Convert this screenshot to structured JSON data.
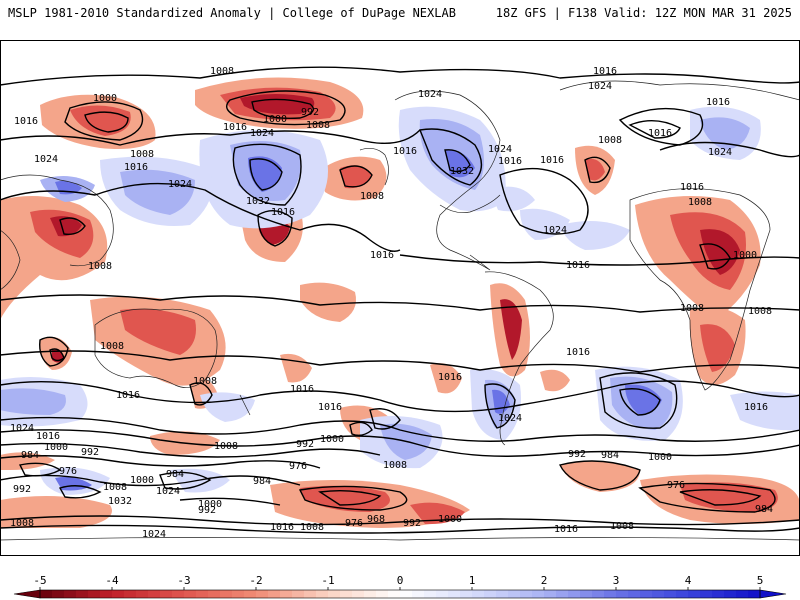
{
  "header": {
    "title_left": "MSLP 1981-2010 Standardized Anomaly | College of DuPage NEXLAB",
    "title_right": "18Z GFS | F138 Valid: 12Z MON MAR 31 2025"
  },
  "colors": {
    "neg_dark": "#b2182b",
    "neg_mid": "#e0564f",
    "neg_light": "#f4a58a",
    "neg_faint": "#fbd3c3",
    "pos_faint": "#d7dcfb",
    "pos_light": "#a9b2f3",
    "pos_mid": "#6a73e6",
    "pos_dark": "#2b34d0"
  },
  "legend": {
    "ticks": [
      "-5",
      "-4",
      "-3",
      "-2",
      "-1",
      "0",
      "1",
      "2",
      "3",
      "4",
      "5"
    ],
    "min": -5,
    "max": 5
  },
  "isobar_labels": [
    "1008",
    "1016",
    "1024",
    "1000",
    "992",
    "1000",
    "1008",
    "1024",
    "1016",
    "1024",
    "1016",
    "1016",
    "1024",
    "1032",
    "1016",
    "1008",
    "1008",
    "1016",
    "1016",
    "1016",
    "1032",
    "1024",
    "1016",
    "1024",
    "1008",
    "1016",
    "1024",
    "1016",
    "1008",
    "1000",
    "1008",
    "1016",
    "1008",
    "1008",
    "1008",
    "1016",
    "1016",
    "1016",
    "1016",
    "1024",
    "1008",
    "1024",
    "1016",
    "1024",
    "1016",
    "1000",
    "992",
    "1008",
    "1000",
    "1008",
    "1016",
    "992",
    "984",
    "984",
    "1000",
    "976",
    "1008",
    "1032",
    "1024",
    "992",
    "976",
    "984",
    "1000",
    "992",
    "1016",
    "1008",
    "976",
    "968",
    "992",
    "1000",
    "984",
    "976",
    "992",
    "1000",
    "984",
    "1016",
    "1008",
    "1008",
    "1024",
    "1016"
  ]
}
